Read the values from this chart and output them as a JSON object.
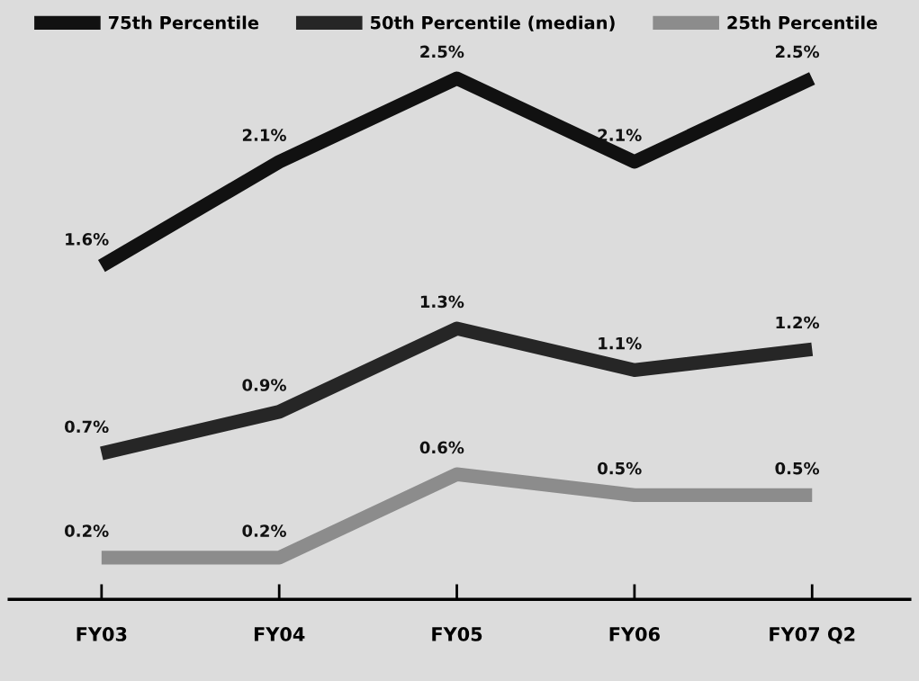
{
  "chart_data": {
    "type": "line",
    "categories": [
      "FY03",
      "FY04",
      "FY05",
      "FY06",
      "FY07 Q2"
    ],
    "series": [
      {
        "name": "75th Percentile",
        "color": "#111111",
        "values": [
          1.6,
          2.1,
          2.5,
          2.1,
          2.5
        ],
        "value_labels": [
          "1.6%",
          "2.1%",
          "2.5%",
          "2.1%",
          "2.5%"
        ]
      },
      {
        "name": "50th Percentile (median)",
        "color": "#262626",
        "values": [
          0.7,
          0.9,
          1.3,
          1.1,
          1.2
        ],
        "value_labels": [
          "0.7%",
          "0.9%",
          "1.3%",
          "1.1%",
          "1.2%"
        ]
      },
      {
        "name": "25th Percentile",
        "color": "#8c8c8c",
        "values": [
          0.2,
          0.2,
          0.6,
          0.5,
          0.5
        ],
        "value_labels": [
          "0.2%",
          "0.2%",
          "0.6%",
          "0.5%",
          "0.5%"
        ]
      }
    ],
    "tick_labels": "x",
    "legend": "top",
    "grid": false,
    "marker": "none",
    "line_style": "solid"
  }
}
